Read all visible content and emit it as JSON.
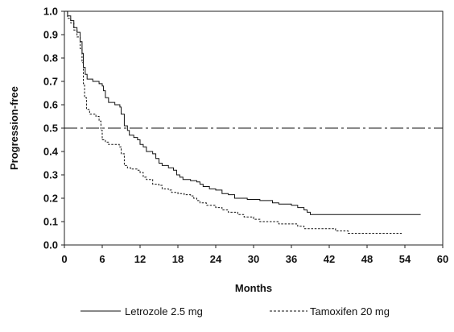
{
  "chart_data": {
    "type": "line",
    "title": "",
    "xlabel": "Months",
    "ylabel": "Progression-free",
    "xlim": [
      0,
      60
    ],
    "ylim": [
      0,
      1.0
    ],
    "x_ticks": [
      0,
      6,
      12,
      18,
      24,
      30,
      36,
      42,
      48,
      54,
      60
    ],
    "y_ticks": [
      0.0,
      0.1,
      0.2,
      0.3,
      0.4,
      0.5,
      0.6,
      0.7,
      0.8,
      0.9,
      1.0
    ],
    "x_tick_labels": [
      "0",
      "6",
      "12",
      "18",
      "24",
      "30",
      "36",
      "42",
      "48",
      "54",
      "60"
    ],
    "y_tick_labels": [
      "0.0",
      "0.1",
      "0.2",
      "0.3",
      "0.4",
      "0.5",
      "0.6",
      "0.7",
      "0.8",
      "0.9",
      "1.0"
    ],
    "grid": false,
    "legend_position": "bottom",
    "reference_line": {
      "y": 0.5,
      "style": "dash-dot"
    },
    "series": [
      {
        "name": "Letrozole 2.5 mg",
        "line_style": "solid",
        "points": [
          [
            0,
            1.0
          ],
          [
            0.5,
            0.98
          ],
          [
            1,
            0.96
          ],
          [
            1.5,
            0.93
          ],
          [
            2,
            0.91
          ],
          [
            2.5,
            0.87
          ],
          [
            2.8,
            0.82
          ],
          [
            3,
            0.76
          ],
          [
            3.3,
            0.73
          ],
          [
            3.6,
            0.71
          ],
          [
            4.5,
            0.7
          ],
          [
            5.5,
            0.69
          ],
          [
            6,
            0.68
          ],
          [
            6.2,
            0.66
          ],
          [
            6.5,
            0.63
          ],
          [
            7,
            0.61
          ],
          [
            8,
            0.6
          ],
          [
            8.8,
            0.59
          ],
          [
            9,
            0.56
          ],
          [
            9.5,
            0.51
          ],
          [
            10,
            0.49
          ],
          [
            10.3,
            0.47
          ],
          [
            11,
            0.46
          ],
          [
            11.6,
            0.45
          ],
          [
            12,
            0.43
          ],
          [
            12.5,
            0.42
          ],
          [
            13,
            0.4
          ],
          [
            14,
            0.39
          ],
          [
            14.5,
            0.37
          ],
          [
            15,
            0.35
          ],
          [
            15.5,
            0.34
          ],
          [
            16.5,
            0.33
          ],
          [
            17.3,
            0.32
          ],
          [
            17.8,
            0.3
          ],
          [
            18.3,
            0.29
          ],
          [
            18.8,
            0.28
          ],
          [
            20,
            0.275
          ],
          [
            21,
            0.27
          ],
          [
            21.5,
            0.26
          ],
          [
            22,
            0.25
          ],
          [
            23,
            0.24
          ],
          [
            24,
            0.235
          ],
          [
            25,
            0.22
          ],
          [
            26,
            0.215
          ],
          [
            27,
            0.2
          ],
          [
            29,
            0.195
          ],
          [
            31,
            0.19
          ],
          [
            33,
            0.18
          ],
          [
            34,
            0.175
          ],
          [
            36,
            0.17
          ],
          [
            37,
            0.16
          ],
          [
            38,
            0.15
          ],
          [
            38.5,
            0.14
          ],
          [
            39,
            0.13
          ],
          [
            41,
            0.13
          ],
          [
            45,
            0.13
          ],
          [
            50,
            0.13
          ],
          [
            54,
            0.13
          ],
          [
            56.5,
            0.13
          ]
        ]
      },
      {
        "name": "Tamoxifen 20 mg",
        "line_style": "dashed",
        "points": [
          [
            0,
            1.0
          ],
          [
            0.5,
            0.97
          ],
          [
            1,
            0.95
          ],
          [
            1.5,
            0.92
          ],
          [
            2,
            0.89
          ],
          [
            2.5,
            0.84
          ],
          [
            2.8,
            0.78
          ],
          [
            3,
            0.69
          ],
          [
            3.2,
            0.63
          ],
          [
            3.5,
            0.58
          ],
          [
            4,
            0.56
          ],
          [
            5,
            0.55
          ],
          [
            5.5,
            0.53
          ],
          [
            5.8,
            0.49
          ],
          [
            6,
            0.45
          ],
          [
            6.5,
            0.44
          ],
          [
            7,
            0.43
          ],
          [
            8,
            0.43
          ],
          [
            8.7,
            0.42
          ],
          [
            9,
            0.39
          ],
          [
            9.5,
            0.34
          ],
          [
            10,
            0.33
          ],
          [
            10.5,
            0.325
          ],
          [
            11.5,
            0.32
          ],
          [
            12,
            0.31
          ],
          [
            12.5,
            0.29
          ],
          [
            13,
            0.28
          ],
          [
            14,
            0.26
          ],
          [
            15,
            0.255
          ],
          [
            15.5,
            0.24
          ],
          [
            16.5,
            0.235
          ],
          [
            17,
            0.225
          ],
          [
            18,
            0.22
          ],
          [
            19,
            0.215
          ],
          [
            20,
            0.21
          ],
          [
            20.5,
            0.2
          ],
          [
            21,
            0.19
          ],
          [
            21.5,
            0.18
          ],
          [
            22.5,
            0.17
          ],
          [
            24,
            0.16
          ],
          [
            25,
            0.15
          ],
          [
            26,
            0.14
          ],
          [
            27.5,
            0.13
          ],
          [
            28.5,
            0.12
          ],
          [
            30,
            0.11
          ],
          [
            31,
            0.1
          ],
          [
            34,
            0.09
          ],
          [
            37,
            0.08
          ],
          [
            38,
            0.07
          ],
          [
            43,
            0.06
          ],
          [
            45,
            0.05
          ],
          [
            50,
            0.05
          ],
          [
            53.5,
            0.05
          ]
        ]
      }
    ]
  }
}
